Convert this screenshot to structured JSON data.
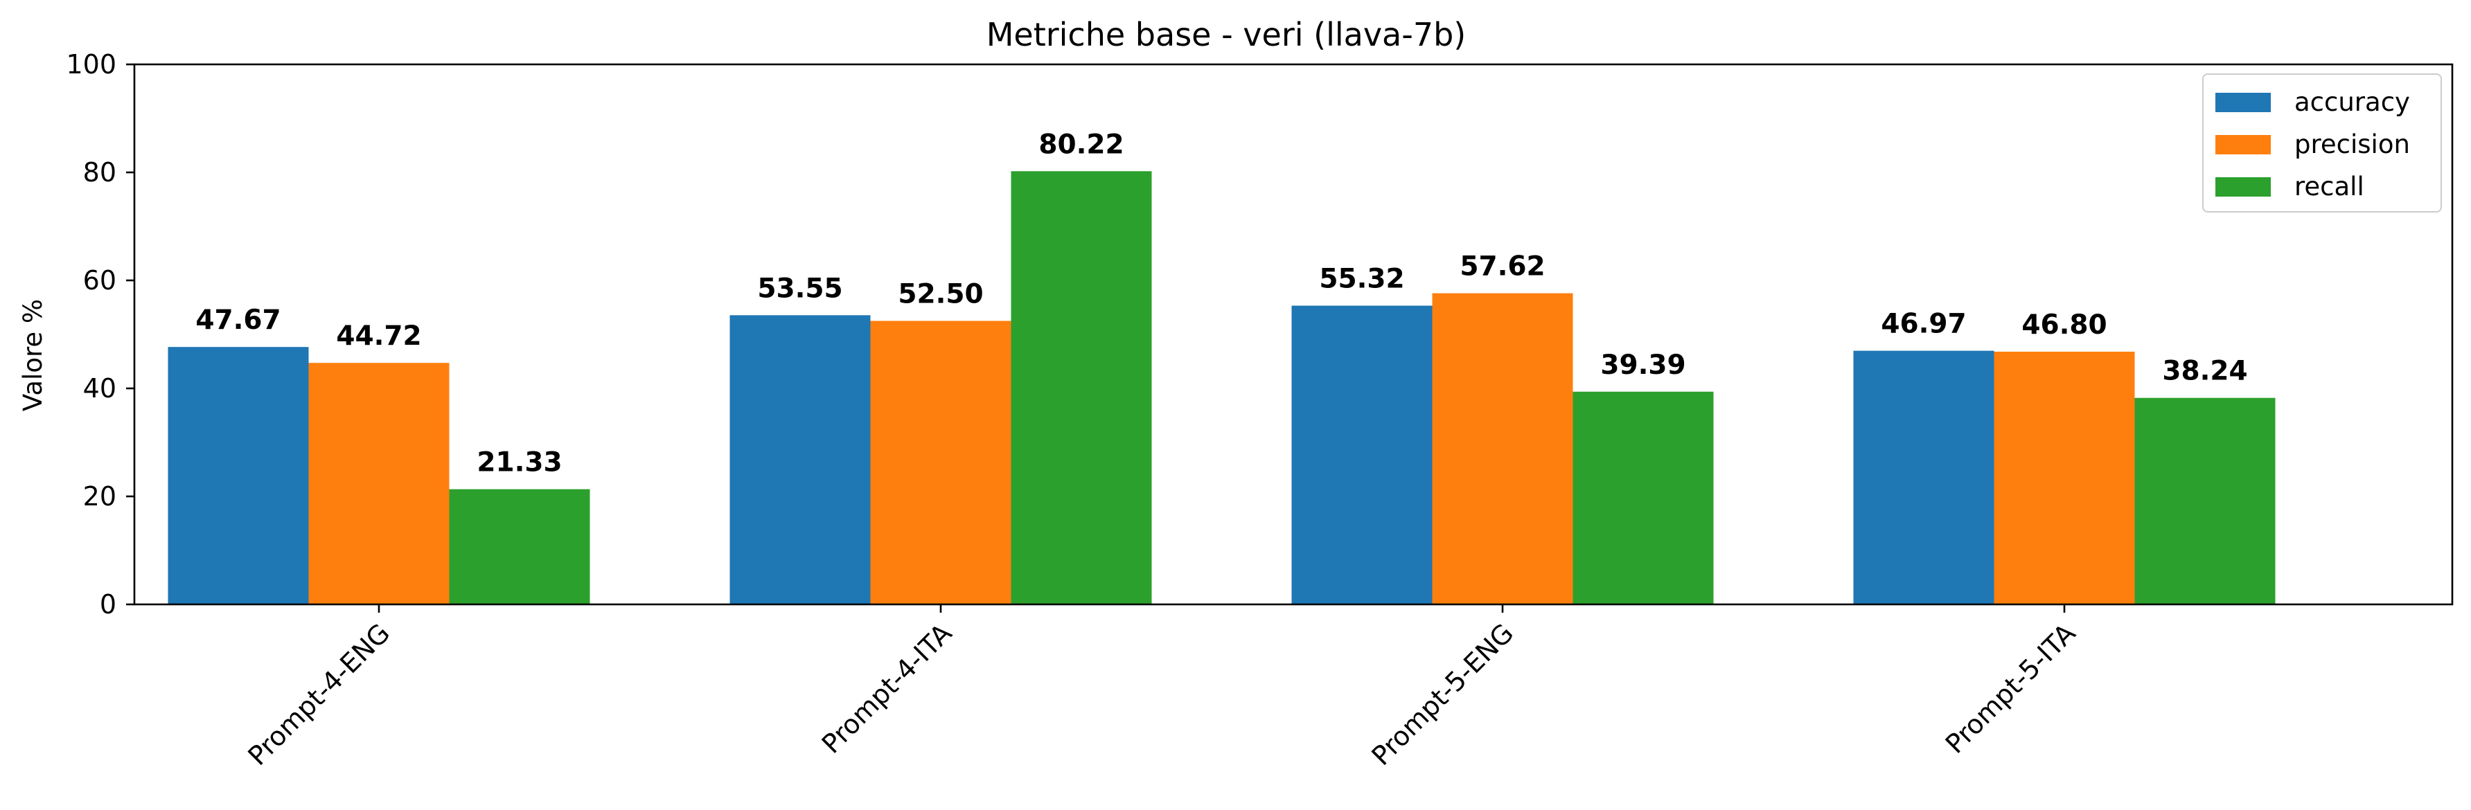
{
  "chart_data": {
    "type": "bar",
    "title": "Metriche base - veri (llava-7b)",
    "xlabel": "",
    "ylabel": "Valore %",
    "ylim": [
      0,
      100
    ],
    "yticks": [
      0,
      20,
      40,
      60,
      80,
      100
    ],
    "categories": [
      "Prompt-4-ENG",
      "Prompt-4-ITA",
      "Prompt-5-ENG",
      "Prompt-5-ITA"
    ],
    "series": [
      {
        "name": "accuracy",
        "color": "#1f77b4",
        "values": [
          47.67,
          53.55,
          55.32,
          46.97
        ]
      },
      {
        "name": "precision",
        "color": "#ff7f0e",
        "values": [
          44.72,
          52.5,
          57.62,
          46.8
        ]
      },
      {
        "name": "recall",
        "color": "#2ca02c",
        "values": [
          21.33,
          80.22,
          39.39,
          38.24
        ]
      }
    ],
    "value_labels": [
      [
        "47.67",
        "53.55",
        "55.32",
        "46.97"
      ],
      [
        "44.72",
        "52.50",
        "57.62",
        "46.80"
      ],
      [
        "21.33",
        "80.22",
        "39.39",
        "38.24"
      ]
    ],
    "grid": false,
    "legend_position": "top-right"
  }
}
